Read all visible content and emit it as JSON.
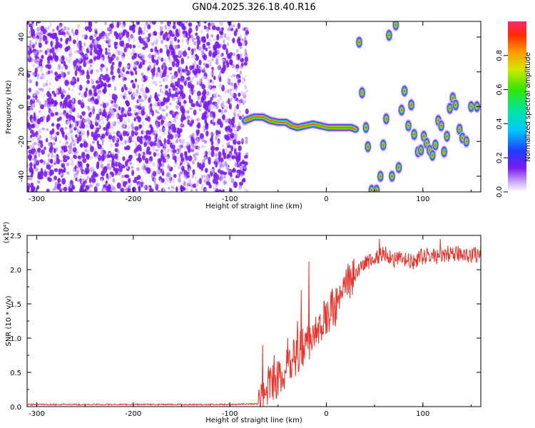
{
  "title": "GN04.2025.326.18.40.R16",
  "colors": {
    "snr_line": "#e8322a",
    "axis": "#000000",
    "background": "#ffffff",
    "noise_purple": "#7a1cf0",
    "noise_light": "#c9a6f7"
  },
  "chart_data": [
    {
      "type": "heatmap",
      "title": "GN04.2025.326.18.40.R16",
      "xlabel": "Height of straight line (km)",
      "ylabel": "Frequency (Hz)",
      "xlim": [
        -310,
        160
      ],
      "ylim": [
        -49,
        49
      ],
      "x_ticks": [
        -300,
        -200,
        -100,
        0,
        100
      ],
      "y_ticks": [
        -40,
        -20,
        0,
        20,
        40
      ],
      "colorbar": {
        "label": "Normalized spectral amplitude",
        "range": [
          0,
          1
        ],
        "ticks": [
          0.0,
          0.2,
          0.4,
          0.6,
          0.8
        ]
      },
      "noise_region_x": [
        -310,
        -82
      ],
      "main_trace": [
        {
          "x": -84,
          "y": -8
        },
        {
          "x": -75,
          "y": -6
        },
        {
          "x": -66,
          "y": -6
        },
        {
          "x": -58,
          "y": -8
        },
        {
          "x": -50,
          "y": -9
        },
        {
          "x": -42,
          "y": -9
        },
        {
          "x": -36,
          "y": -11
        },
        {
          "x": -30,
          "y": -12
        },
        {
          "x": -22,
          "y": -11
        },
        {
          "x": -14,
          "y": -10
        },
        {
          "x": -6,
          "y": -11
        },
        {
          "x": 2,
          "y": -12
        },
        {
          "x": 10,
          "y": -12
        },
        {
          "x": 18,
          "y": -12
        },
        {
          "x": 26,
          "y": -12
        },
        {
          "x": 30,
          "y": -13
        }
      ],
      "spots": [
        {
          "x": 34,
          "y": 37
        },
        {
          "x": 37,
          "y": 8
        },
        {
          "x": 41,
          "y": -12
        },
        {
          "x": 43,
          "y": -23
        },
        {
          "x": 47,
          "y": -48
        },
        {
          "x": 52,
          "y": -48
        },
        {
          "x": 56,
          "y": -40
        },
        {
          "x": 59,
          "y": -22
        },
        {
          "x": 62,
          "y": -7
        },
        {
          "x": 65,
          "y": 41
        },
        {
          "x": 68,
          "y": -40
        },
        {
          "x": 72,
          "y": 47
        },
        {
          "x": 75,
          "y": -35
        },
        {
          "x": 78,
          "y": -2
        },
        {
          "x": 81,
          "y": 9
        },
        {
          "x": 85,
          "y": -11
        },
        {
          "x": 88,
          "y": 1
        },
        {
          "x": 91,
          "y": -16
        },
        {
          "x": 95,
          "y": -26
        },
        {
          "x": 98,
          "y": -25
        },
        {
          "x": 101,
          "y": -17
        },
        {
          "x": 104,
          "y": -21
        },
        {
          "x": 107,
          "y": -25
        },
        {
          "x": 110,
          "y": -28
        },
        {
          "x": 113,
          "y": -22
        },
        {
          "x": 116,
          "y": -8
        },
        {
          "x": 119,
          "y": -11
        },
        {
          "x": 122,
          "y": -26
        },
        {
          "x": 125,
          "y": -17
        },
        {
          "x": 128,
          "y": -1
        },
        {
          "x": 131,
          "y": 5
        },
        {
          "x": 134,
          "y": 1
        },
        {
          "x": 138,
          "y": -13
        },
        {
          "x": 141,
          "y": -18
        },
        {
          "x": 145,
          "y": -20
        },
        {
          "x": 150,
          "y": 0
        },
        {
          "x": 156,
          "y": 0
        }
      ]
    },
    {
      "type": "line",
      "xlabel": "Height of straight line (km)",
      "ylabel": "SNR (10 * v/v)",
      "y_exponent": "(x10⁴)",
      "xlim": [
        -310,
        160
      ],
      "ylim": [
        0,
        2.5
      ],
      "x_ticks": [
        -300,
        -200,
        -100,
        0,
        100
      ],
      "y_ticks": [
        0.0,
        0.5,
        1.0,
        1.5,
        2.0,
        2.5
      ],
      "y_tick_labels": [
        "0.0",
        "0.5",
        "1.0",
        "1.5",
        "2.0",
        "2.5"
      ],
      "series": [
        {
          "x": [
            -310,
            -200,
            -100,
            -70,
            -66,
            -60,
            -50,
            -40,
            -30,
            -25,
            -20,
            -15,
            -10,
            0,
            10,
            20,
            30,
            40,
            50,
            60,
            70,
            80,
            90,
            100,
            110,
            120,
            130,
            140,
            150,
            160
          ],
          "y": [
            0.03,
            0.03,
            0.03,
            0.04,
            0.15,
            0.3,
            0.4,
            0.55,
            0.75,
            0.85,
            0.95,
            1.0,
            1.05,
            1.3,
            1.5,
            1.75,
            1.95,
            2.1,
            2.15,
            2.25,
            2.15,
            2.15,
            2.1,
            2.2,
            2.2,
            2.2,
            2.2,
            2.25,
            2.2,
            2.25
          ]
        }
      ],
      "peaks": [
        {
          "x": -66,
          "y": 0.9
        },
        {
          "x": -54,
          "y": 0.75
        },
        {
          "x": -40,
          "y": 1.0
        },
        {
          "x": -30,
          "y": 1.25
        },
        {
          "x": -26,
          "y": 1.7
        },
        {
          "x": -18,
          "y": 2.12
        },
        {
          "x": -12,
          "y": 1.2
        },
        {
          "x": 8,
          "y": 1.6
        },
        {
          "x": 55,
          "y": 2.45
        },
        {
          "x": 118,
          "y": 2.45
        },
        {
          "x": 126,
          "y": 2.35
        }
      ]
    }
  ]
}
